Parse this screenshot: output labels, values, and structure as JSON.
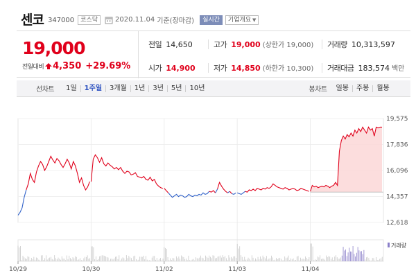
{
  "header": {
    "name": "센코",
    "code": "347000",
    "market": "코스닥",
    "date": "2020.11.04",
    "date_note": "기준(장마감)",
    "realtime_label": "실시간",
    "company_label": "기업개요"
  },
  "quote": {
    "price": "19,000",
    "change_label": "전일대비",
    "change": "4,350",
    "change_pct": "+29.69%",
    "prev_close": {
      "label": "전일",
      "value": "14,650"
    },
    "high": {
      "label": "고가",
      "value": "19,000",
      "sub": "(상한가 19,000)"
    },
    "volume": {
      "label": "거래량",
      "value": "10,313,597"
    },
    "open": {
      "label": "시가",
      "value": "14,900"
    },
    "low": {
      "label": "저가",
      "value": "14,850",
      "sub": "(하한가 10,300)"
    },
    "turnover": {
      "label": "거래대금",
      "value": "183,574",
      "unit": "백만"
    }
  },
  "periods": {
    "line_title": "선차트",
    "line_items": [
      "1일",
      "1주일",
      "3개월",
      "1년",
      "3년",
      "5년",
      "10년"
    ],
    "active": "1주일",
    "candle_title": "봉차트",
    "candle_items": [
      "일봉",
      "주봉",
      "월봉"
    ]
  },
  "colors": {
    "up": "#e0001b",
    "down": "#3162c9",
    "fill": "#fbd7d7",
    "volume": "#c8c8c8",
    "volume_highlight": "#8b7fc9"
  },
  "chart_data": {
    "type": "line",
    "x_labels": [
      "10/29",
      "10/30",
      "11/02",
      "11/03",
      "11/04"
    ],
    "y_ticks": [
      "19,575",
      "17,836",
      "16,096",
      "14,357",
      "12,618"
    ],
    "ylim": [
      12618,
      19575
    ],
    "baseline": 14650,
    "legend": "거래량",
    "days": [
      {
        "label": "10/29",
        "points": [
          13100,
          13300,
          13600,
          14300,
          14800,
          15200,
          15900,
          15500,
          15300,
          16000,
          16400,
          16700,
          16500,
          16100,
          16350,
          16700,
          17050,
          16800,
          16600,
          16900,
          16750,
          16500,
          16300,
          16550,
          16850,
          16600,
          16200,
          16700,
          16400,
          15900,
          15300,
          15600,
          15100,
          14800,
          15000,
          15350
        ]
      },
      {
        "label": "10/30",
        "points": [
          15350,
          16850,
          17150,
          16950,
          16650,
          16950,
          16550,
          16400,
          16600,
          16450,
          16350,
          16200,
          16300,
          16150,
          16300,
          16050,
          15900,
          16050,
          16000,
          15800,
          15850,
          15950,
          15700,
          15650,
          15600,
          15700,
          15500,
          15450,
          15650,
          15400,
          15500,
          15200,
          15050,
          14950,
          14900
        ]
      },
      {
        "label": "11/02",
        "points": [
          14900,
          14750,
          14600,
          14450,
          14300,
          14400,
          14500,
          14350,
          14450,
          14400,
          14300,
          14350,
          14500,
          14400,
          14350,
          14450,
          14400,
          14500,
          14450,
          14600,
          14500,
          14550,
          14700,
          14650,
          14750,
          14600,
          14850,
          15300,
          15050,
          14850,
          14700,
          14600,
          14700,
          14550,
          14500,
          14600
        ]
      },
      {
        "label": "11/03",
        "points": [
          14600,
          14550,
          14500,
          14600,
          14700,
          14650,
          14800,
          14750,
          14850,
          14750,
          14900,
          14850,
          14800,
          14900,
          14850,
          14950,
          14900,
          15000,
          15200,
          15100,
          15000,
          14950,
          14900,
          14850,
          14950,
          14900,
          14800,
          14850,
          14900,
          14850,
          14750,
          14800,
          14900,
          14850,
          14800,
          14750,
          14700
        ]
      },
      {
        "label": "11/04",
        "points": [
          14700,
          15100,
          15000,
          15050,
          14950,
          15000,
          15050,
          15000,
          15100,
          15050,
          14950,
          15050,
          15100,
          15300,
          15100,
          17400,
          18100,
          18400,
          18200,
          18500,
          18350,
          18600,
          18400,
          18800,
          18600,
          18900,
          18700,
          19000,
          18800,
          18600,
          19000,
          18800,
          18900,
          18400,
          19000,
          18950,
          19000,
          19000
        ]
      }
    ]
  }
}
